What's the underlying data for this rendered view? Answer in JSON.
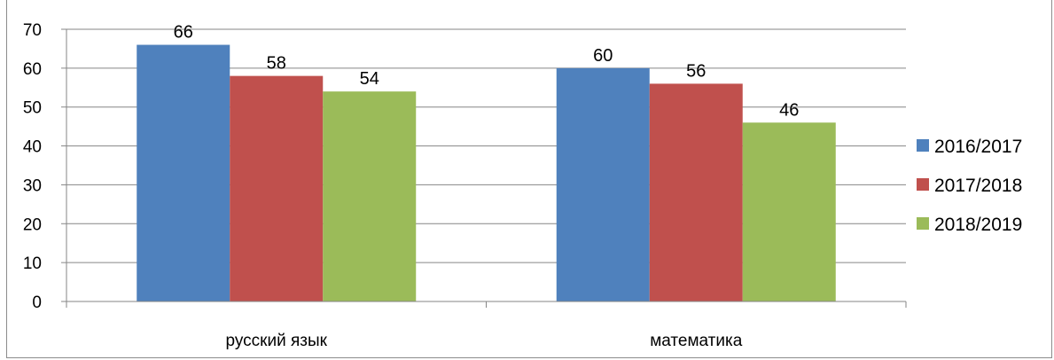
{
  "chart_data": {
    "type": "bar",
    "categories": [
      "русский язык",
      "математика"
    ],
    "series": [
      {
        "name": "2016/2017",
        "values": [
          66,
          60
        ],
        "color": "#4f81bd"
      },
      {
        "name": "2017/2018",
        "values": [
          58,
          56
        ],
        "color": "#c0504d"
      },
      {
        "name": "2018/2019",
        "values": [
          54,
          46
        ],
        "color": "#9bbb59"
      }
    ],
    "y_ticks": [
      0,
      10,
      20,
      30,
      40,
      50,
      60,
      70
    ],
    "ylim": [
      0,
      70
    ],
    "grid": true,
    "legend_position": "right",
    "data_labels": true,
    "title": "",
    "xlabel": "",
    "ylabel": ""
  }
}
